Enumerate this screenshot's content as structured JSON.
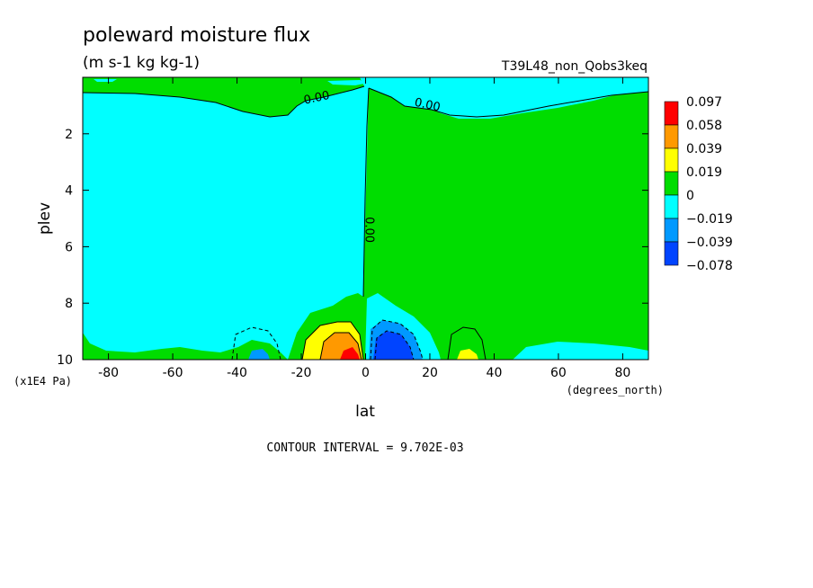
{
  "chart_data": {
    "type": "heatmap",
    "title": "poleward moisture flux",
    "subtitle": "(m s-1 kg kg-1)",
    "run_label": "T39L48_non_Qobs3keq",
    "xlabel": "lat",
    "xunits": "(degrees_north)",
    "ylabel": "plev",
    "yunits": "(x1E4 Pa)",
    "xlim": [
      -88,
      88
    ],
    "ylim": [
      10,
      0
    ],
    "xticks": [
      -80,
      -60,
      -40,
      -20,
      0,
      20,
      40,
      60,
      80
    ],
    "yticks": [
      2,
      4,
      6,
      8,
      10
    ],
    "contour_interval": "CONTOUR INTERVAL = 9.702E-03",
    "contour_labels": [
      {
        "text": "0.00",
        "lat": -15,
        "plev": 0.85
      },
      {
        "text": "0.00",
        "lat": 19,
        "plev": 1.1
      },
      {
        "text": "0.00",
        "lat": 0,
        "plev": 5.4
      }
    ],
    "legend": {
      "levels": [
        "0.097",
        "0.058",
        "0.039",
        "0.019",
        "0",
        "-0.019",
        "-0.039",
        "-0.078"
      ],
      "colors": [
        "#ff0000",
        "#ff9900",
        "#ffff00",
        "#00dd00",
        "#00ffff",
        "#0099ff",
        "#0044ff"
      ]
    },
    "colors": {
      "positive": "#00dd00",
      "negative": "#00ffff",
      "neg_medium": "#0099ff",
      "neg_strong": "#0044ff",
      "pos_low": "#ffff00",
      "pos_medium": "#ff9900",
      "pos_strong": "#ff0000"
    }
  }
}
